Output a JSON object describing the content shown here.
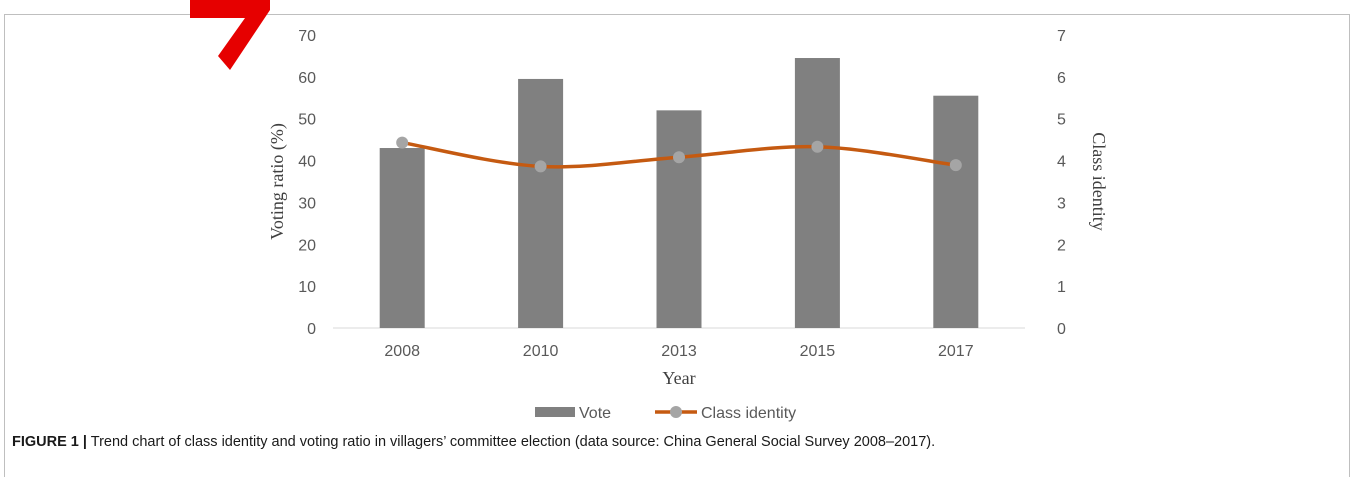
{
  "caption": {
    "label": "FIGURE 1 |",
    "text": "Trend chart of class identity and voting ratio in villagers’ committee election (data source: China General Social Survey 2008–2017)."
  },
  "colors": {
    "bar": "#808080",
    "line": "#c55a11",
    "marker": "#a5a5a5",
    "watermark": "#e60000"
  },
  "chart_data": {
    "type": "bar",
    "categories": [
      "2008",
      "2010",
      "2013",
      "2015",
      "2017"
    ],
    "xlabel": "Year",
    "ylabel": "Voting ratio (%)",
    "y2label": "Class identity",
    "ylim": [
      0,
      70
    ],
    "y2lim": [
      0,
      7
    ],
    "yticks": [
      "0",
      "10",
      "20",
      "30",
      "40",
      "50",
      "60",
      "70"
    ],
    "y2ticks": [
      "0",
      "1",
      "2",
      "3",
      "4",
      "5",
      "6",
      "7"
    ],
    "grid": false,
    "legend_position": "bottom",
    "series": [
      {
        "name": "Vote",
        "type": "bar",
        "axis": "left",
        "values": [
          43,
          59.5,
          52,
          64.5,
          55.5
        ]
      },
      {
        "name": "Class identity",
        "type": "line",
        "axis": "right",
        "values": [
          4.43,
          3.86,
          4.08,
          4.33,
          3.89
        ]
      }
    ]
  }
}
